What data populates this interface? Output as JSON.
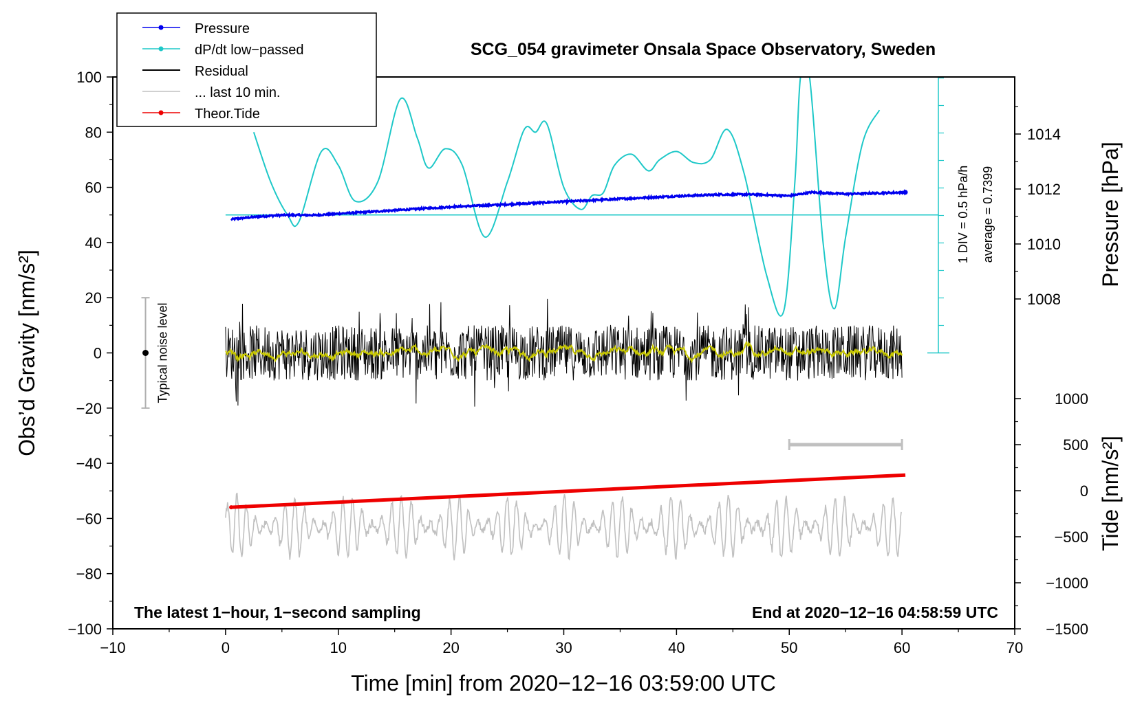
{
  "chart_data": {
    "type": "line",
    "title": "SCG_054 gravimeter Onsala Space Observatory, Sweden",
    "xlabel": "Time [min] from 2020−12−16 03:59:00 UTC",
    "ylabel_left": "Obs’d Gravity [nm/s²]",
    "ylabel_right_pressure": "Pressure [hPa]",
    "ylabel_right_tide": "Tide [nm/s²]",
    "xlim": [
      -10,
      70
    ],
    "ylim_left": [
      -100,
      100
    ],
    "x_ticks": [
      "−10",
      "0",
      "10",
      "20",
      "30",
      "40",
      "50",
      "60",
      "70"
    ],
    "y_ticks_left": [
      "−100",
      "−80",
      "−60",
      "−40",
      "−20",
      "0",
      "20",
      "40",
      "60",
      "80",
      "100"
    ],
    "pressure_ticks": [
      "1008",
      "1010",
      "1012",
      "1014"
    ],
    "tide_ticks": [
      "1000",
      "500",
      "0",
      "−500",
      "−1000",
      "−1500"
    ],
    "footer_left": "The latest 1−hour, 1−second sampling",
    "footer_right": "End at 2020−12−16 04:58:59 UTC",
    "noise_label": "Typical noise level",
    "noise_range": [
      -20,
      20
    ],
    "dpdt_scale_label": "1 DIV = 0.5 hPa/h",
    "dpdt_average_label": "average = 0.7399",
    "legend": [
      {
        "label": "Pressure",
        "color": "#0000ee",
        "marker": true
      },
      {
        "label": "dP/dt low−passed",
        "color": "#1ec8c8",
        "marker": true
      },
      {
        "label": "Residual",
        "color": "#000000",
        "marker": false
      },
      {
        "label": "... last 10 min.",
        "color": "#c0c0c0",
        "marker": false
      },
      {
        "label": "Theor.Tide",
        "color": "#ee0000",
        "marker": true
      }
    ],
    "colors": {
      "pressure": "#0000ee",
      "dpdt": "#1ec8c8",
      "residual": "#000000",
      "residual_smooth": "#c8c800",
      "last10": "#c0c0c0",
      "tide": "#ee0000"
    },
    "series": [
      {
        "name": "Pressure",
        "units": "hPa",
        "x": [
          0.5,
          3,
          5,
          8,
          12,
          16,
          20,
          24,
          28,
          32,
          36,
          40,
          44,
          47,
          50,
          52,
          55,
          58,
          60.3
        ],
        "values": [
          1010.9,
          1011.0,
          1011.05,
          1011.05,
          1011.15,
          1011.25,
          1011.35,
          1011.42,
          1011.5,
          1011.58,
          1011.66,
          1011.74,
          1011.8,
          1011.8,
          1011.75,
          1011.88,
          1011.82,
          1011.85,
          1011.88
        ]
      },
      {
        "name": "dP/dt low-passed",
        "units": "left-axis units (average line at 50)",
        "x": [
          2.5,
          4,
          5.5,
          6.5,
          8.5,
          10,
          11.5,
          13.5,
          15.5,
          17,
          18,
          19.5,
          21,
          23,
          25,
          26.5,
          27.5,
          28.5,
          30,
          31.5,
          32.5,
          33.5,
          34.5,
          36,
          37.5,
          38.5,
          40,
          41.5,
          43,
          44.5,
          46,
          48,
          49.5,
          50.5,
          51,
          51.8,
          53,
          54,
          55,
          56.5,
          58
        ],
        "values": [
          80,
          62,
          50,
          47.5,
          73,
          68,
          55,
          62,
          92,
          78,
          67,
          74,
          68,
          42,
          62,
          81,
          80,
          83,
          60,
          52,
          57,
          58,
          68,
          72,
          66,
          70,
          73,
          69,
          70,
          81,
          65,
          28,
          15,
          62,
          100,
          100,
          40,
          16,
          42,
          76,
          88
        ]
      },
      {
        "name": "Theor.Tide",
        "units": "nm/s²",
        "x": [
          0.5,
          60.3
        ],
        "values": [
          -180,
          170
        ]
      },
      {
        "name": "Residual",
        "units": "nm/s²",
        "x_range": [
          0,
          60
        ],
        "amplitude_range": [
          -20,
          25
        ],
        "smoothed_mean": 0
      },
      {
        "name": "... last 10 min.",
        "units": "nm/s² (display offset)",
        "x_range": [
          0,
          60
        ],
        "center": -63,
        "amplitude_range": [
          -80,
          -43
        ]
      }
    ],
    "range_bar_x": [
      50,
      60
    ]
  }
}
